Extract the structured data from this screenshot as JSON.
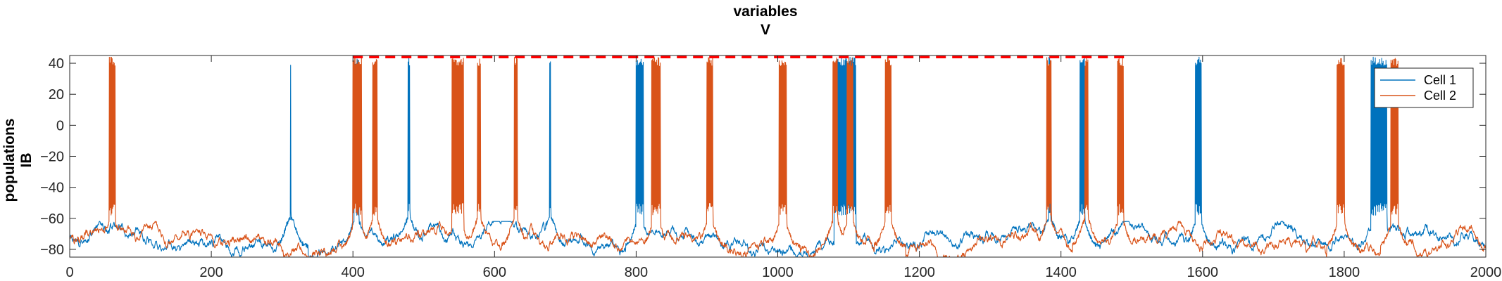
{
  "chart_data": {
    "type": "line",
    "title": [
      "variables",
      "V"
    ],
    "ylabel": [
      "populations",
      "IB"
    ],
    "xlabel": "",
    "xlim": [
      0,
      2000
    ],
    "ylim": [
      -85,
      45
    ],
    "xticks": [
      0,
      200,
      400,
      600,
      800,
      1000,
      1200,
      1400,
      1600,
      1800,
      2000
    ],
    "yticks": [
      40,
      20,
      0,
      -20,
      -40,
      -60,
      -80
    ],
    "grid": false,
    "legend": "top-right",
    "baseline_range": [
      -83,
      -65
    ],
    "series": [
      {
        "name": "Cell 1",
        "color": "#0072BD",
        "bursts": [
          [
            312,
            312
          ],
          [
            402,
            408
          ],
          [
            478,
            480
          ],
          [
            678,
            679
          ],
          [
            800,
            810
          ],
          [
            1080,
            1110
          ],
          [
            1383,
            1385
          ],
          [
            1427,
            1433
          ],
          [
            1590,
            1598
          ],
          [
            1838,
            1860
          ]
        ]
      },
      {
        "name": "Cell 2",
        "color": "#D95319",
        "bursts": [
          [
            56,
            64
          ],
          [
            400,
            412
          ],
          [
            428,
            434
          ],
          [
            540,
            556
          ],
          [
            576,
            580
          ],
          [
            628,
            632
          ],
          [
            822,
            834
          ],
          [
            900,
            908
          ],
          [
            1002,
            1012
          ],
          [
            1078,
            1084
          ],
          [
            1098,
            1106
          ],
          [
            1152,
            1160
          ],
          [
            1380,
            1386
          ],
          [
            1434,
            1438
          ],
          [
            1480,
            1488
          ],
          [
            1790,
            1800
          ],
          [
            1866,
            1876
          ]
        ]
      }
    ],
    "annotations": [
      {
        "type": "dashed-line",
        "y": 44,
        "x_range": [
          400,
          1490
        ],
        "color": "#FF0000"
      }
    ]
  }
}
